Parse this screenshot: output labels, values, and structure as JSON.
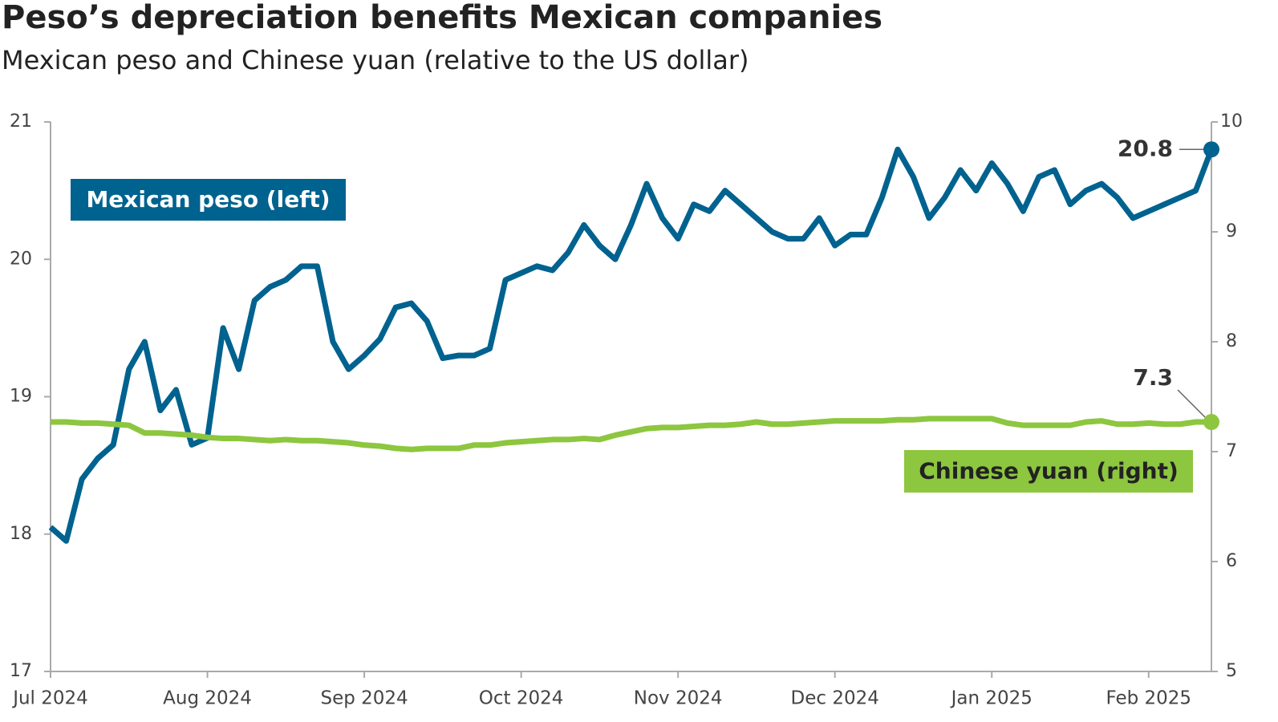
{
  "chart_data": {
    "type": "line",
    "title": "Peso’s depreciation benefits Mexican companies",
    "subtitle": "Mexican peso and Chinese yuan (relative to the US dollar)",
    "categories": [
      "Jul 2024",
      null,
      null,
      null,
      null,
      null,
      null,
      null,
      null,
      null,
      "Aug 2024",
      null,
      null,
      null,
      null,
      null,
      null,
      null,
      null,
      null,
      "Sep 2024",
      null,
      null,
      null,
      null,
      null,
      null,
      null,
      null,
      null,
      "Oct 2024",
      null,
      null,
      null,
      null,
      null,
      null,
      null,
      null,
      null,
      "Nov 2024",
      null,
      null,
      null,
      null,
      null,
      null,
      null,
      null,
      null,
      "Dec 2024",
      null,
      null,
      null,
      null,
      null,
      null,
      null,
      null,
      null,
      "Jan 2025",
      null,
      null,
      null,
      null,
      null,
      null,
      null,
      null,
      null,
      "Feb 2025",
      null,
      null,
      null,
      null
    ],
    "series": [
      {
        "name": "Mexican peso (left)",
        "color": "#00628f",
        "axis": "y",
        "values": [
          18.05,
          17.95,
          18.4,
          18.55,
          18.65,
          19.2,
          19.4,
          18.9,
          19.05,
          18.65,
          18.7,
          19.5,
          19.2,
          19.7,
          19.8,
          19.85,
          19.95,
          19.95,
          19.4,
          19.2,
          19.3,
          19.42,
          19.65,
          19.68,
          19.55,
          19.28,
          19.3,
          19.3,
          19.35,
          19.85,
          19.9,
          19.95,
          19.92,
          20.05,
          20.25,
          20.1,
          20.0,
          20.25,
          20.55,
          20.3,
          20.15,
          20.4,
          20.35,
          20.5,
          20.4,
          20.3,
          20.2,
          20.15,
          20.15,
          20.3,
          20.1,
          20.18,
          20.18,
          20.45,
          20.8,
          20.6,
          20.3,
          20.45,
          20.65,
          20.5,
          20.7,
          20.55,
          20.35,
          20.6,
          20.65,
          20.4,
          20.5,
          20.55,
          20.45,
          20.3,
          20.35,
          20.4,
          20.45,
          20.5,
          20.8
        ]
      },
      {
        "name": "Chinese yuan (right)",
        "color": "#8dc63f",
        "axis": "y2",
        "values": [
          7.27,
          7.27,
          7.26,
          7.26,
          7.25,
          7.24,
          7.17,
          7.17,
          7.16,
          7.15,
          7.13,
          7.12,
          7.12,
          7.11,
          7.1,
          7.11,
          7.1,
          7.1,
          7.09,
          7.08,
          7.06,
          7.05,
          7.03,
          7.02,
          7.03,
          7.03,
          7.03,
          7.06,
          7.06,
          7.08,
          7.09,
          7.1,
          7.11,
          7.11,
          7.12,
          7.11,
          7.15,
          7.18,
          7.21,
          7.22,
          7.22,
          7.23,
          7.24,
          7.24,
          7.25,
          7.27,
          7.25,
          7.25,
          7.26,
          7.27,
          7.28,
          7.28,
          7.28,
          7.28,
          7.29,
          7.29,
          7.3,
          7.3,
          7.3,
          7.3,
          7.3,
          7.26,
          7.24,
          7.24,
          7.24,
          7.24,
          7.27,
          7.28,
          7.25,
          7.25,
          7.26,
          7.25,
          7.25,
          7.27,
          7.27
        ],
        "value_labels": [
          null,
          null,
          null,
          null,
          null,
          null,
          null,
          null,
          null,
          null,
          null,
          null,
          null,
          null,
          null,
          null,
          null,
          null,
          null,
          null,
          null,
          null,
          null,
          null,
          null,
          null,
          null,
          null,
          null,
          null,
          null,
          null,
          null,
          null,
          null,
          null,
          null,
          null,
          null,
          null,
          null,
          null,
          null,
          null,
          null,
          null,
          null,
          null,
          null,
          null,
          null,
          null,
          null,
          null,
          null,
          null,
          null,
          null,
          null,
          null,
          null,
          null,
          null,
          null,
          null,
          null,
          null,
          null,
          null,
          null,
          null,
          null,
          null,
          null,
          "7.3"
        ]
      }
    ],
    "ylim": [
      17,
      21
    ],
    "yticks": [
      17,
      18,
      19,
      20,
      21
    ],
    "y2lim": [
      5,
      10
    ],
    "y2ticks": [
      5,
      6,
      7,
      8,
      9,
      10
    ]
  }
}
